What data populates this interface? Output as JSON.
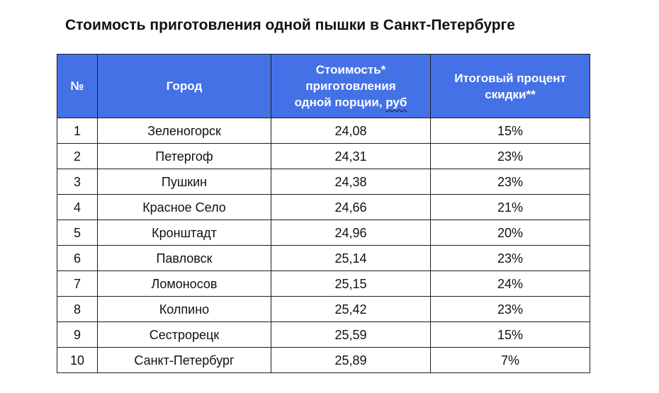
{
  "title": "Стоимость приготовления одной пышки в Санкт-Петербурге",
  "colors": {
    "header_bg": "#4472e6",
    "header_text": "#ffffff",
    "border": "#1c1c1c"
  },
  "headers": {
    "num": "№",
    "city": "Город",
    "cost_line1": "Стоимость*",
    "cost_line2": "приготовления",
    "cost_line3_prefix": "одной порции, ",
    "cost_line3_unit": "руб",
    "discount_line1": "Итоговый процент",
    "discount_line2": "скидки**"
  },
  "rows": [
    {
      "num": "1",
      "city": "Зеленогорск",
      "cost": "24,08",
      "discount": "15%"
    },
    {
      "num": "2",
      "city": "Петергоф",
      "cost": "24,31",
      "discount": "23%"
    },
    {
      "num": "3",
      "city": "Пушкин",
      "cost": "24,38",
      "discount": "23%"
    },
    {
      "num": "4",
      "city": "Красное Село",
      "cost": "24,66",
      "discount": "21%"
    },
    {
      "num": "5",
      "city": "Кронштадт",
      "cost": "24,96",
      "discount": "20%"
    },
    {
      "num": "6",
      "city": "Павловск",
      "cost": "25,14",
      "discount": "23%"
    },
    {
      "num": "7",
      "city": "Ломоносов",
      "cost": "25,15",
      "discount": "24%"
    },
    {
      "num": "8",
      "city": "Колпино",
      "cost": "25,42",
      "discount": "23%"
    },
    {
      "num": "9",
      "city": "Сестрорецк",
      "cost": "25,59",
      "discount": "15%"
    },
    {
      "num": "10",
      "city": "Санкт-Петербург",
      "cost": "25,89",
      "discount": "7%"
    }
  ],
  "chart_data": {
    "type": "table",
    "title": "Стоимость приготовления одной пышки в Санкт-Петербурге",
    "columns": [
      "№",
      "Город",
      "Стоимость* приготовления одной порции, руб",
      "Итоговый процент скидки**"
    ],
    "rows": [
      [
        "1",
        "Зеленогорск",
        24.08,
        15
      ],
      [
        "2",
        "Петергоф",
        24.31,
        23
      ],
      [
        "3",
        "Пушкин",
        24.38,
        23
      ],
      [
        "4",
        "Красное Село",
        24.66,
        21
      ],
      [
        "5",
        "Кронштадт",
        24.96,
        20
      ],
      [
        "6",
        "Павловск",
        25.14,
        23
      ],
      [
        "7",
        "Ломоносов",
        25.15,
        24
      ],
      [
        "8",
        "Колпино",
        25.42,
        23
      ],
      [
        "9",
        "Сестрорецк",
        25.59,
        15
      ],
      [
        "10",
        "Санкт-Петербург",
        25.89,
        7
      ]
    ]
  }
}
